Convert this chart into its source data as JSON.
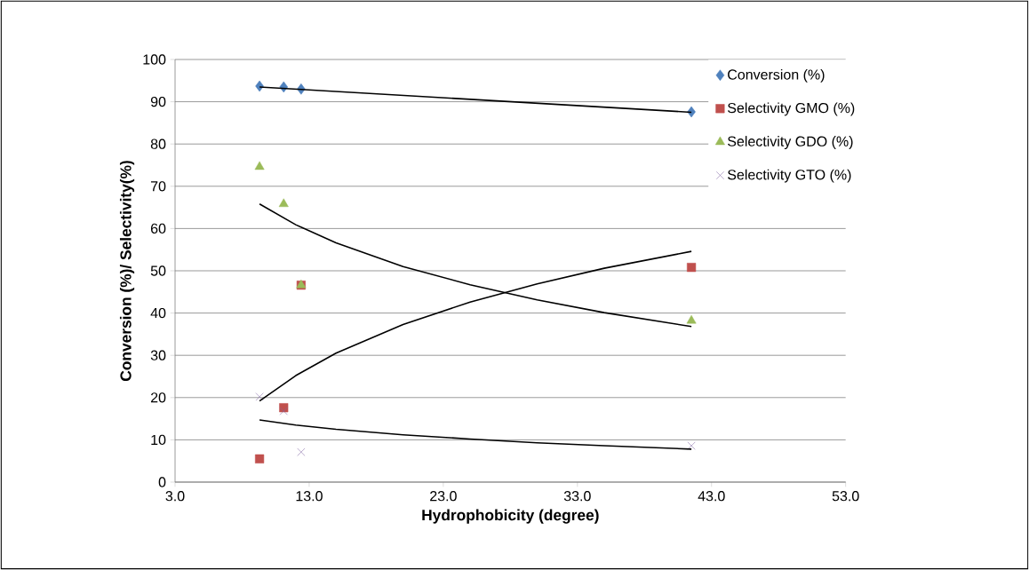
{
  "chart_data": {
    "type": "scatter",
    "xlabel": "Hydrophobicity (degree)",
    "ylabel": "Conversion (%)/ Selectivity(%)",
    "xlim": [
      3.0,
      53.0
    ],
    "xticks": [
      {
        "value": 3,
        "label": "3.0"
      },
      {
        "value": 13,
        "label": "13.0"
      },
      {
        "value": 23,
        "label": "23.0"
      },
      {
        "value": 33,
        "label": "33.0"
      },
      {
        "value": 43,
        "label": "43.0"
      },
      {
        "value": 53,
        "label": "53.0"
      }
    ],
    "ylim": [
      0,
      100
    ],
    "yticks": [
      0,
      10,
      20,
      30,
      40,
      50,
      60,
      70,
      80,
      90,
      100
    ],
    "grid": "y",
    "legend": "top right",
    "series": [
      {
        "name": "Conversion (%)",
        "color": "#4f81bd",
        "marker": "diamond",
        "x": [
          9.3,
          11.1,
          12.4,
          41.5
        ],
        "values": [
          93.7,
          93.5,
          93.0,
          87.6
        ]
      },
      {
        "name": "Selectivity  GMO (%)",
        "color": "#c0504d",
        "marker": "square",
        "x": [
          9.3,
          11.1,
          12.4,
          41.5
        ],
        "values": [
          5.5,
          17.6,
          46.6,
          50.8
        ]
      },
      {
        "name": "Selectivity GDO (%)",
        "color": "#9bbb59",
        "marker": "triangle",
        "x": [
          9.3,
          11.1,
          12.4,
          41.5
        ],
        "values": [
          74.6,
          65.8,
          46.6,
          38.2
        ]
      },
      {
        "name": "Selectivity  GTO (%)",
        "color": "#8064a2",
        "marker": "cross",
        "x": [
          9.3,
          11.1,
          12.4,
          41.5
        ],
        "values": [
          20.2,
          16.8,
          7.1,
          8.6
        ]
      },
      {
        "type": "line",
        "color": "#000000",
        "marker": "none",
        "x": [
          9.3,
          41.5
        ],
        "values": [
          93.5,
          87.5
        ]
      },
      {
        "type": "line",
        "color": "#000000",
        "marker": "none",
        "x": [
          9.3,
          12,
          15,
          20,
          25,
          30,
          35,
          41.5
        ],
        "values": [
          65.8,
          60.9,
          56.6,
          51.0,
          46.7,
          43.1,
          40.1,
          36.8
        ]
      },
      {
        "type": "line",
        "color": "#000000",
        "marker": "none",
        "x": [
          9.3,
          12,
          15,
          20,
          25,
          30,
          35,
          41.5
        ],
        "values": [
          19.2,
          25.2,
          30.5,
          37.3,
          42.6,
          46.9,
          50.6,
          54.6
        ]
      },
      {
        "type": "line",
        "color": "#000000",
        "marker": "none",
        "x": [
          9.3,
          12,
          15,
          20,
          25,
          30,
          35,
          41.5
        ],
        "values": [
          14.7,
          13.5,
          12.5,
          11.2,
          10.2,
          9.3,
          8.6,
          7.8
        ]
      }
    ]
  }
}
